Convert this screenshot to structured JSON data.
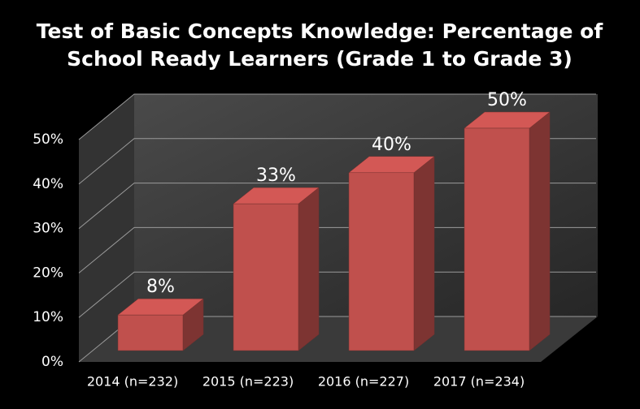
{
  "chart_data": {
    "type": "bar3d",
    "title": [
      "Test of Basic Concepts Knowledge: Percentage of",
      "School Ready Learners (Grade 1 to Grade 3)"
    ],
    "categories": [
      "2014 (n=232)",
      "2015 (n=223)",
      "2016 (n=227)",
      "2017 (n=234)"
    ],
    "values": [
      8,
      33,
      40,
      50
    ],
    "value_labels": [
      "8%",
      "33%",
      "40%",
      "50%"
    ],
    "color": "#c0504d",
    "ylim": [
      0,
      50
    ],
    "yticks": [
      {
        "value": 0,
        "label": "0%"
      },
      {
        "value": 10,
        "label": "10%"
      },
      {
        "value": 20,
        "label": "20%"
      },
      {
        "value": 30,
        "label": "30%"
      },
      {
        "value": 40,
        "label": "40%"
      },
      {
        "value": 50,
        "label": "50%"
      }
    ],
    "grid": true
  }
}
